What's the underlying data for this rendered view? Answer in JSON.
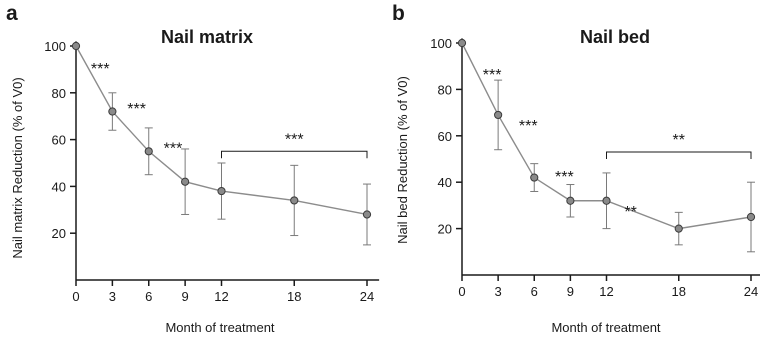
{
  "chart_data": [
    {
      "type": "line",
      "panel_label": "a",
      "title": "Nail matrix",
      "xlabel": "Month of treatment",
      "ylabel": "Nail matrix Reduction (% of V0)",
      "x_ticks": [
        0,
        3,
        6,
        9,
        12,
        18,
        24
      ],
      "y_ticks": [
        20,
        40,
        60,
        80,
        100
      ],
      "xlim": [
        0,
        25
      ],
      "ylim": [
        0,
        102
      ],
      "x": [
        0,
        3,
        6,
        9,
        12,
        18,
        24
      ],
      "y": [
        100,
        72,
        55,
        42,
        38,
        34,
        28
      ],
      "error": [
        0,
        8,
        10,
        14,
        12,
        15,
        13
      ],
      "significance": [
        {
          "x": 2,
          "y": 88,
          "text": "***"
        },
        {
          "x": 5,
          "y": 71,
          "text": "***"
        },
        {
          "x": 8,
          "y": 54,
          "text": "***"
        }
      ],
      "bracket": {
        "x_start": 12,
        "x_end": 24,
        "y": 55,
        "text": "***"
      }
    },
    {
      "type": "line",
      "panel_label": "b",
      "title": "Nail bed",
      "xlabel": "Month of treatment",
      "ylabel": "Nail bed Reduction (% of V0)",
      "x_ticks": [
        0,
        3,
        6,
        9,
        12,
        18,
        24
      ],
      "y_ticks": [
        20,
        40,
        60,
        80,
        100
      ],
      "xlim": [
        0,
        25
      ],
      "ylim": [
        0,
        102
      ],
      "x": [
        0,
        3,
        6,
        9,
        12,
        18,
        24
      ],
      "y": [
        100,
        69,
        42,
        32,
        32,
        20,
        25
      ],
      "error": [
        0,
        15,
        6,
        7,
        12,
        7,
        15
      ],
      "significance": [
        {
          "x": 2.5,
          "y": 84,
          "text": "***"
        },
        {
          "x": 5.5,
          "y": 62,
          "text": "***"
        },
        {
          "x": 8.5,
          "y": 40,
          "text": "***"
        },
        {
          "x": 14,
          "y": 25,
          "text": "**"
        }
      ],
      "bracket": {
        "x_start": 12,
        "x_end": 24,
        "y": 53,
        "text": "**"
      }
    }
  ]
}
